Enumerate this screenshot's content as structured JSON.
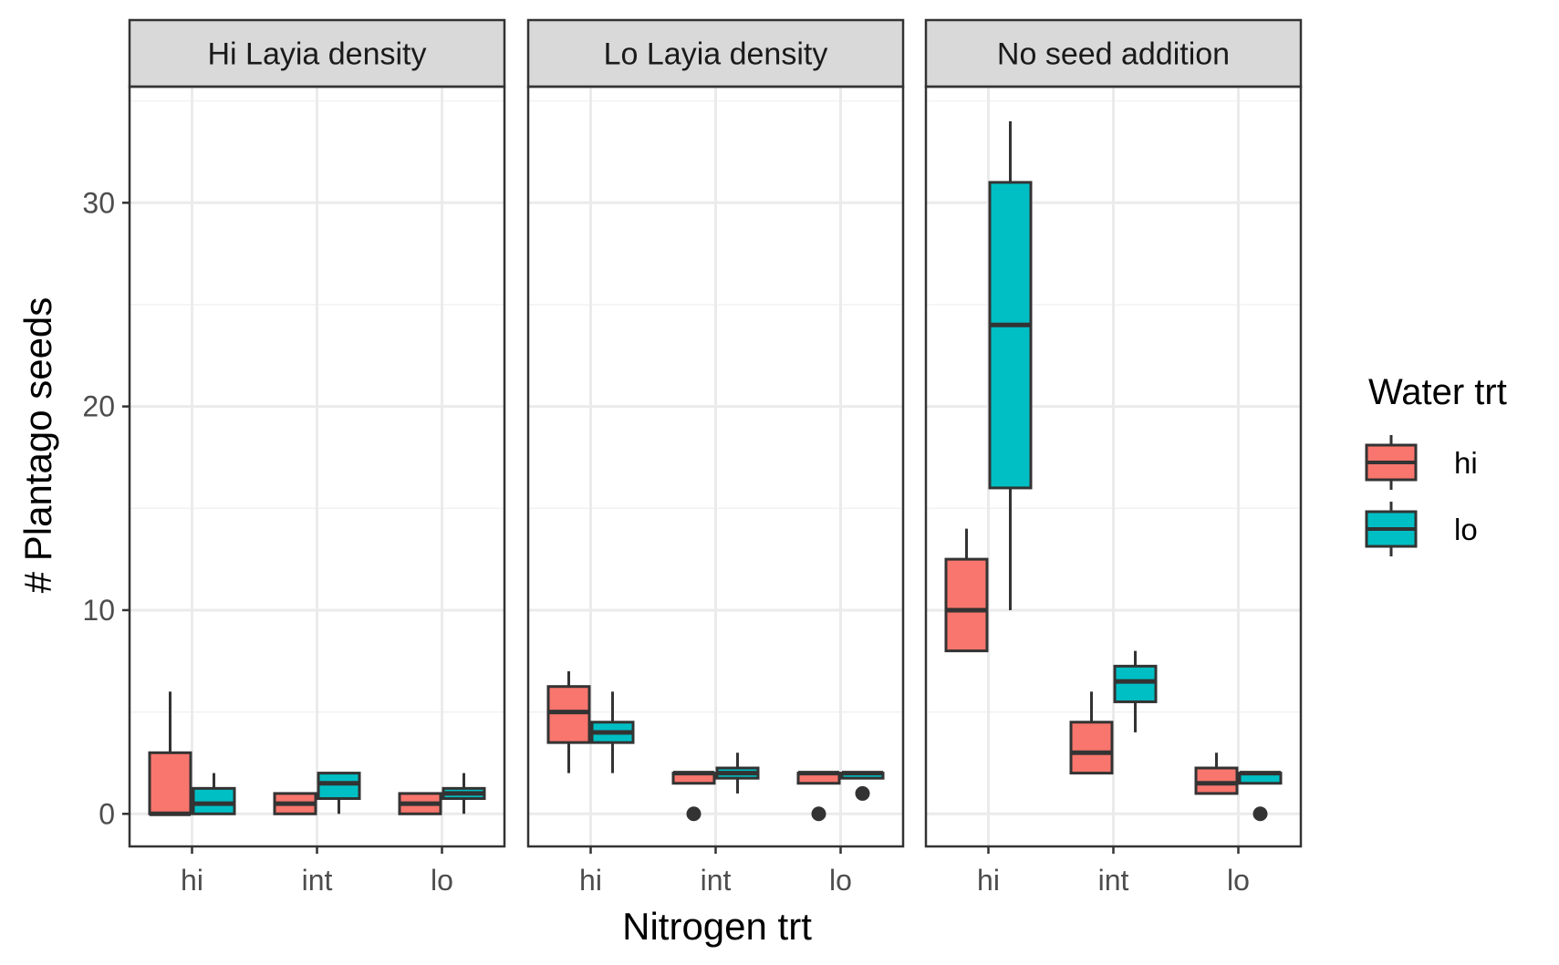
{
  "chart_data": {
    "type": "box",
    "xlabel": "Nitrogen trt",
    "ylabel": "# Plantago seeds",
    "ylim": [
      -1.6,
      35.7
    ],
    "yticks": [
      0,
      10,
      20,
      30
    ],
    "categories": [
      "hi",
      "int",
      "lo"
    ],
    "facets": [
      "Hi Layia density",
      "Lo Layia density",
      "No seed addition"
    ],
    "legend": {
      "title": "Water trt",
      "position": "right",
      "entries": [
        {
          "label": "hi",
          "color": "#F8766D"
        },
        {
          "label": "lo",
          "color": "#00BFC4"
        }
      ]
    },
    "grid": true,
    "boxes": [
      {
        "facet": 0,
        "category": "hi",
        "water": "hi",
        "ymin": 0,
        "q1": 0,
        "median": 0,
        "q3": 3,
        "ymax": 6,
        "outliers": []
      },
      {
        "facet": 0,
        "category": "hi",
        "water": "lo",
        "ymin": 0,
        "q1": 0,
        "median": 0.5,
        "q3": 1.25,
        "ymax": 2,
        "outliers": []
      },
      {
        "facet": 0,
        "category": "int",
        "water": "hi",
        "ymin": 0,
        "q1": 0,
        "median": 0.5,
        "q3": 1,
        "ymax": 1,
        "outliers": []
      },
      {
        "facet": 0,
        "category": "int",
        "water": "lo",
        "ymin": 0,
        "q1": 0.75,
        "median": 1.5,
        "q3": 2,
        "ymax": 2,
        "outliers": []
      },
      {
        "facet": 0,
        "category": "lo",
        "water": "hi",
        "ymin": 0,
        "q1": 0,
        "median": 0.5,
        "q3": 1,
        "ymax": 1,
        "outliers": []
      },
      {
        "facet": 0,
        "category": "lo",
        "water": "lo",
        "ymin": 0,
        "q1": 0.75,
        "median": 1,
        "q3": 1.25,
        "ymax": 2,
        "outliers": []
      },
      {
        "facet": 1,
        "category": "hi",
        "water": "hi",
        "ymin": 2,
        "q1": 3.5,
        "median": 5,
        "q3": 6.25,
        "ymax": 7,
        "outliers": []
      },
      {
        "facet": 1,
        "category": "hi",
        "water": "lo",
        "ymin": 2,
        "q1": 3.5,
        "median": 4,
        "q3": 4.5,
        "ymax": 6,
        "outliers": []
      },
      {
        "facet": 1,
        "category": "int",
        "water": "hi",
        "ymin": 1.5,
        "q1": 1.5,
        "median": 2,
        "q3": 2,
        "ymax": 2,
        "outliers": [
          0
        ]
      },
      {
        "facet": 1,
        "category": "int",
        "water": "lo",
        "ymin": 1,
        "q1": 1.75,
        "median": 2,
        "q3": 2.25,
        "ymax": 3,
        "outliers": []
      },
      {
        "facet": 1,
        "category": "lo",
        "water": "hi",
        "ymin": 1.5,
        "q1": 1.5,
        "median": 2,
        "q3": 2,
        "ymax": 2,
        "outliers": [
          0
        ]
      },
      {
        "facet": 1,
        "category": "lo",
        "water": "lo",
        "ymin": 1.75,
        "q1": 1.75,
        "median": 2,
        "q3": 2,
        "ymax": 2,
        "outliers": [
          1
        ]
      },
      {
        "facet": 2,
        "category": "hi",
        "water": "hi",
        "ymin": 8,
        "q1": 8,
        "median": 10,
        "q3": 12.5,
        "ymax": 14,
        "outliers": []
      },
      {
        "facet": 2,
        "category": "hi",
        "water": "lo",
        "ymin": 10,
        "q1": 16,
        "median": 24,
        "q3": 31,
        "ymax": 34,
        "outliers": []
      },
      {
        "facet": 2,
        "category": "int",
        "water": "hi",
        "ymin": 2,
        "q1": 2,
        "median": 3,
        "q3": 4.5,
        "ymax": 6,
        "outliers": []
      },
      {
        "facet": 2,
        "category": "int",
        "water": "lo",
        "ymin": 4,
        "q1": 5.5,
        "median": 6.5,
        "q3": 7.25,
        "ymax": 8,
        "outliers": []
      },
      {
        "facet": 2,
        "category": "lo",
        "water": "hi",
        "ymin": 1,
        "q1": 1,
        "median": 1.5,
        "q3": 2.25,
        "ymax": 3,
        "outliers": []
      },
      {
        "facet": 2,
        "category": "lo",
        "water": "lo",
        "ymin": 1.5,
        "q1": 1.5,
        "median": 2,
        "q3": 2,
        "ymax": 2,
        "outliers": [
          0
        ]
      }
    ]
  }
}
